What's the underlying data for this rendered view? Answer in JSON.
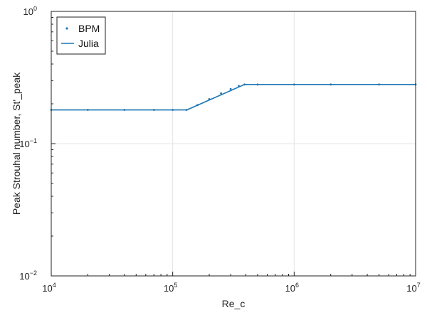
{
  "chart_data": {
    "type": "line",
    "xlabel": "Re_c",
    "ylabel": "Peak Strouhal number, St'_peak",
    "xscale": "log",
    "yscale": "log",
    "xlim": [
      10000,
      10000000
    ],
    "ylim": [
      0.01,
      1
    ],
    "grid": true,
    "legend": "top-left",
    "x_ticks": [
      {
        "value": 10000,
        "base": "10",
        "exp": "4"
      },
      {
        "value": 100000,
        "base": "10",
        "exp": "5"
      },
      {
        "value": 1000000,
        "base": "10",
        "exp": "6"
      },
      {
        "value": 10000000,
        "base": "10",
        "exp": "7"
      }
    ],
    "y_ticks": [
      {
        "value": 0.01,
        "base": "10",
        "exp": "−2"
      },
      {
        "value": 0.1,
        "base": "10",
        "exp": "−1"
      },
      {
        "value": 1,
        "base": "10",
        "exp": "0"
      }
    ],
    "series": [
      {
        "name": "BPM",
        "style": "markers",
        "color": "#1f77b4",
        "x": [
          10000,
          20000,
          40000,
          70000,
          100000,
          130000,
          160000,
          200000,
          250000,
          300000,
          350000,
          390000,
          500000,
          1000000,
          2000000,
          5000000,
          10000000
        ],
        "y": [
          0.18,
          0.18,
          0.18,
          0.18,
          0.18,
          0.18,
          0.196,
          0.217,
          0.24,
          0.259,
          0.273,
          0.28,
          0.28,
          0.28,
          0.28,
          0.28,
          0.28
        ]
      },
      {
        "name": "Julia",
        "style": "line",
        "color": "#1f77b4",
        "x": [
          10000,
          131000,
          390000,
          10000000
        ],
        "y": [
          0.18,
          0.18,
          0.28,
          0.28
        ]
      }
    ]
  }
}
